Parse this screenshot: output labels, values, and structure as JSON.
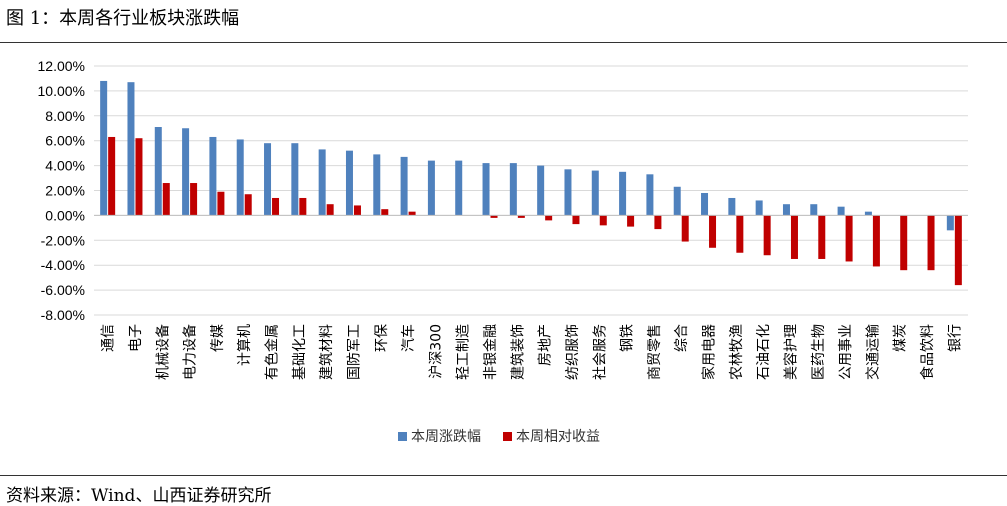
{
  "figure_title": "图 1：本周各行业板块涨跌幅",
  "source": "资料来源：Wind、山西证券研究所",
  "chart_data": {
    "type": "bar",
    "categories": [
      "通信",
      "电子",
      "机械设备",
      "电力设备",
      "传媒",
      "计算机",
      "有色金属",
      "基础化工",
      "建筑材料",
      "国防军工",
      "环保",
      "汽车",
      "沪深300",
      "轻工制造",
      "非银金融",
      "建筑装饰",
      "房地产",
      "纺织服饰",
      "社会服务",
      "钢铁",
      "商贸零售",
      "综合",
      "家用电器",
      "农林牧渔",
      "石油石化",
      "美容护理",
      "医药生物",
      "公用事业",
      "交通运输",
      "煤炭",
      "食品饮料",
      "银行"
    ],
    "series": [
      {
        "name": "本周涨跌幅",
        "color": "#4F81BD",
        "values": [
          10.8,
          10.7,
          7.1,
          7.0,
          6.3,
          6.1,
          5.8,
          5.8,
          5.3,
          5.2,
          4.9,
          4.7,
          4.4,
          4.4,
          4.2,
          4.2,
          4.0,
          3.7,
          3.6,
          3.5,
          3.3,
          2.3,
          1.8,
          1.4,
          1.2,
          0.9,
          0.9,
          0.7,
          0.3,
          0,
          0,
          -1.2
        ]
      },
      {
        "name": "本周相对收益",
        "color": "#C00000",
        "values": [
          6.3,
          6.2,
          2.6,
          2.6,
          1.9,
          1.7,
          1.4,
          1.4,
          0.9,
          0.8,
          0.5,
          0.3,
          0,
          0,
          -0.2,
          -0.2,
          -0.4,
          -0.7,
          -0.8,
          -0.9,
          -1.1,
          -2.1,
          -2.6,
          -3.0,
          -3.2,
          -3.5,
          -3.5,
          -3.7,
          -4.1,
          -4.4,
          -4.4,
          -5.6
        ]
      }
    ],
    "yticks": [
      "12.00%",
      "10.00%",
      "8.00%",
      "6.00%",
      "4.00%",
      "2.00%",
      "0.00%",
      "-2.00%",
      "-4.00%",
      "-6.00%",
      "-8.00%"
    ],
    "ylim": [
      -8,
      12
    ],
    "grid": true,
    "legend_position": "bottom"
  }
}
